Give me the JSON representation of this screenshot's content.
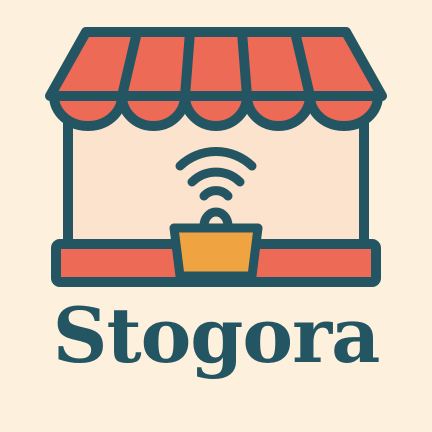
{
  "brand": {
    "name": "Stogora"
  },
  "colors": {
    "background": "#fdf0dc",
    "outline": "#245563",
    "awning_red": "#ec6a56",
    "store_fill": "#fbe3cd",
    "basket": "#f0a441"
  },
  "icons": {
    "storefront": "storefront-icon",
    "signal": "wifi-signal-icon",
    "basket": "shopping-basket-icon"
  }
}
